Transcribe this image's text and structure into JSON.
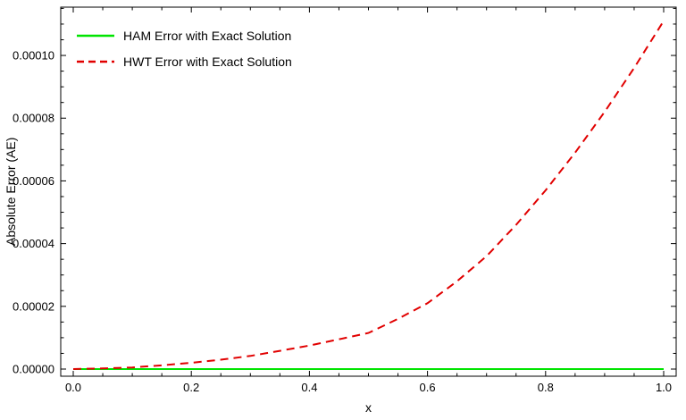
{
  "chart_data": {
    "type": "line",
    "title": "",
    "xlabel": "x",
    "ylabel": "Absolute Error (AE)",
    "xlim": [
      0,
      1
    ],
    "ylim": [
      0,
      0.0001154
    ],
    "xticks": [
      0,
      0.2,
      0.4,
      0.6,
      0.8,
      1
    ],
    "xtick_labels": [
      "0.0",
      "0.2",
      "0.4",
      "0.6",
      "0.8",
      "1.0"
    ],
    "yticks": [
      0,
      2e-05,
      4e-05,
      6e-05,
      8e-05,
      0.0001
    ],
    "ytick_labels": [
      "0.00000",
      "0.00002",
      "0.00004",
      "0.00006",
      "0.00008",
      "0.00010"
    ],
    "x_minor_step": 0.05,
    "y_minor_step": 5e-06,
    "grid": false,
    "frame": true,
    "frame_color": "#000000",
    "legend_position": "top-left",
    "series": [
      {
        "name": "HAM Error with Exact Solution",
        "color": "#00E400",
        "style": "solid",
        "x": [
          0,
          0.1,
          0.2,
          0.3,
          0.4,
          0.5,
          0.6,
          0.7,
          0.8,
          0.9,
          1.0
        ],
        "y": [
          0,
          0,
          0,
          0,
          0,
          0,
          0,
          0,
          0,
          0,
          0
        ]
      },
      {
        "name": "HWT Error with Exact Solution",
        "color": "#E10000",
        "style": "dashed",
        "x": [
          0,
          0.05,
          0.1,
          0.15,
          0.2,
          0.25,
          0.3,
          0.35,
          0.4,
          0.45,
          0.5,
          0.55,
          0.6,
          0.65,
          0.7,
          0.75,
          0.8,
          0.85,
          0.9,
          0.95,
          1.0
        ],
        "y": [
          0,
          2e-07,
          5e-07,
          1.2e-06,
          2e-06,
          3e-06,
          4.2e-06,
          5.8e-06,
          7.5e-06,
          9.5e-06,
          1.15e-05,
          1.6e-05,
          2.1e-05,
          2.8e-05,
          3.6e-05,
          4.6e-05,
          5.7e-05,
          6.9e-05,
          8.2e-05,
          9.6e-05,
          0.000111
        ]
      }
    ]
  }
}
